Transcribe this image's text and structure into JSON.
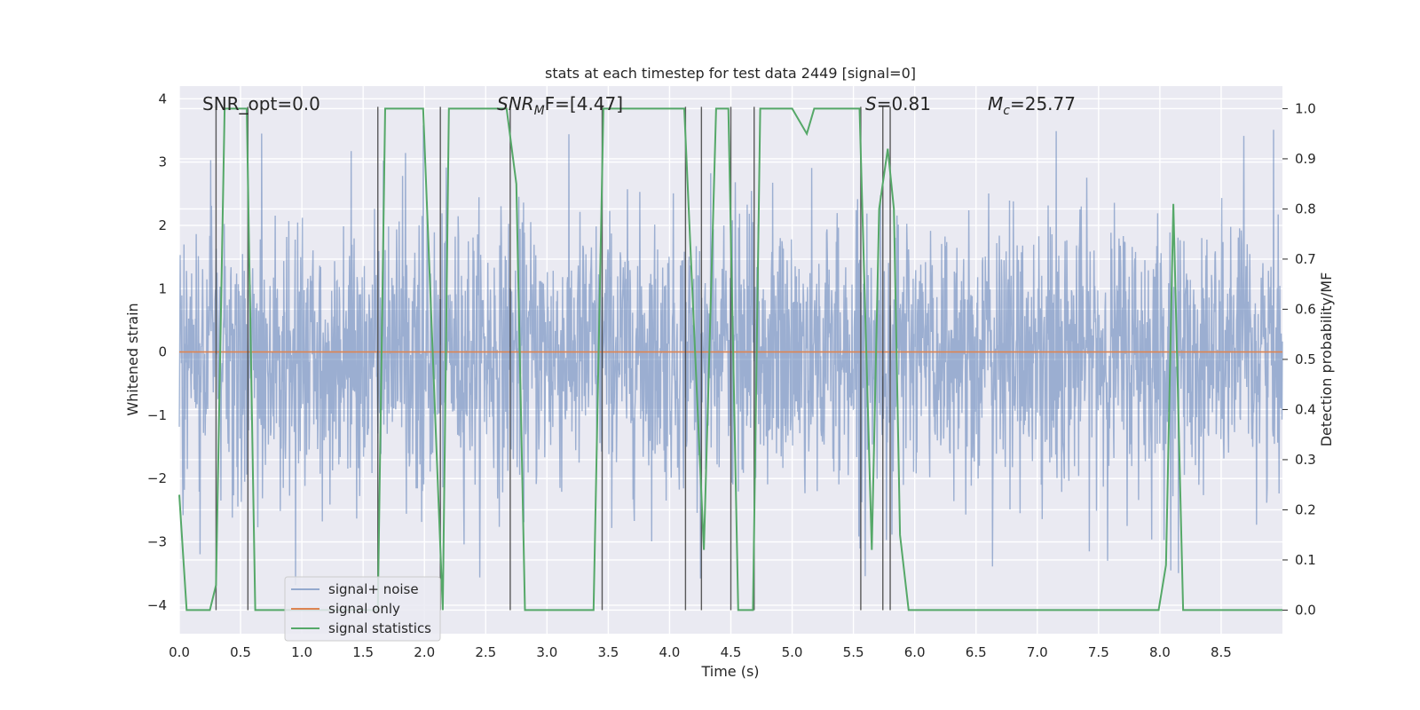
{
  "chart_data": {
    "type": "line",
    "title": "stats at each timestep for test data 2449 [signal=0]",
    "xlabel": "Time (s)",
    "ylabel_left": "Whitened strain",
    "ylabel_right": "Detection probability/MF",
    "xlim": [
      0,
      9.0
    ],
    "ylim_left": [
      -4.45,
      4.2
    ],
    "ylim_right": [
      -0.047,
      1.045
    ],
    "x_ticks": [
      "0.0",
      "0.5",
      "1.0",
      "1.5",
      "2.0",
      "2.5",
      "3.0",
      "3.5",
      "4.0",
      "4.5",
      "5.0",
      "5.5",
      "6.0",
      "6.5",
      "7.0",
      "7.5",
      "8.0",
      "8.5"
    ],
    "y_left_ticks": [
      "−4",
      "−3",
      "−2",
      "−1",
      "0",
      "1",
      "2",
      "3",
      "4"
    ],
    "y_right_ticks": [
      "0.0",
      "0.1",
      "0.2",
      "0.3",
      "0.4",
      "0.5",
      "0.6",
      "0.7",
      "0.8",
      "0.9",
      "1.0"
    ],
    "annotations": {
      "snr_opt": "SNR_opt=0.0",
      "snr_mf_prefix": "SNR",
      "snr_mf_sub": "M",
      "snr_mf_suffix": "F=[4.47]",
      "s_prefix": "S",
      "s_suffix": "=0.81",
      "mc_prefix": "M",
      "mc_sub": "c",
      "mc_suffix": "=25.77"
    },
    "legend": {
      "placement": "lower-left",
      "entries": [
        "signal+ noise",
        "signal only",
        "signal statistics"
      ]
    },
    "colors": {
      "background": "#eaeaf2",
      "grid": "#ffffff",
      "noise": "#4c72b0",
      "signal_only": "#dd8452",
      "statistics": "#55a868",
      "vlines": "#404040"
    },
    "series": [
      {
        "name": "signal+ noise",
        "axis": "left",
        "note": "whitened noise, roughly ±1.5 dense band with peaks to about ±3.7",
        "envelope": {
          "dense_band": [
            -1.6,
            1.5
          ],
          "peaks": [
            -3.7,
            3.6
          ]
        }
      },
      {
        "name": "signal only",
        "axis": "left",
        "x": [
          0,
          9.0
        ],
        "values": [
          0,
          0
        ]
      },
      {
        "name": "signal statistics",
        "axis": "right",
        "x": [
          0.0,
          0.06,
          0.25,
          0.3,
          0.37,
          0.55,
          0.62,
          1.62,
          1.68,
          1.99,
          2.15,
          2.2,
          2.67,
          2.75,
          2.82,
          3.38,
          3.46,
          4.12,
          4.28,
          4.38,
          4.48,
          4.56,
          4.68,
          4.74,
          5.0,
          5.12,
          5.18,
          5.55,
          5.65,
          5.71,
          5.78,
          5.83,
          5.88,
          5.95,
          6.0,
          7.99,
          8.05,
          8.11,
          8.19,
          9.0
        ],
        "values": [
          0.23,
          0.0,
          0.0,
          0.05,
          1.0,
          1.0,
          0.0,
          0.0,
          1.0,
          1.0,
          0.0,
          1.0,
          1.0,
          0.85,
          0.0,
          0.0,
          1.0,
          1.0,
          0.12,
          1.0,
          1.0,
          0.0,
          0.0,
          1.0,
          1.0,
          0.95,
          1.0,
          1.0,
          0.12,
          0.8,
          0.92,
          0.8,
          0.15,
          0.0,
          0.0,
          0.0,
          0.09,
          0.81,
          0.0,
          0.0
        ]
      }
    ],
    "vertical_lines": [
      0.3,
      0.56,
      1.62,
      2.13,
      2.7,
      3.45,
      4.13,
      4.26,
      4.5,
      4.69,
      5.56,
      5.74,
      5.8
    ]
  }
}
